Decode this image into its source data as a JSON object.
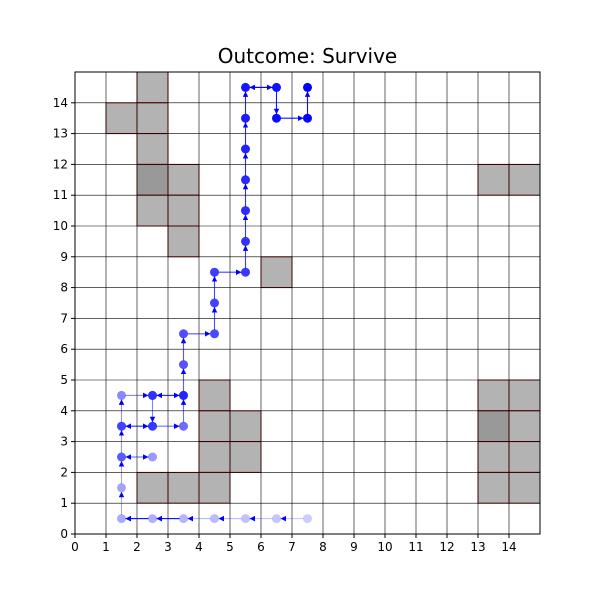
{
  "chart_data": {
    "type": "scatter",
    "title": "Outcome: Survive",
    "xlabel": "",
    "ylabel": "",
    "xlim": [
      0,
      15
    ],
    "ylim": [
      0,
      15
    ],
    "x_ticks": [
      0,
      1,
      2,
      3,
      4,
      5,
      6,
      7,
      8,
      9,
      10,
      11,
      12,
      13,
      14
    ],
    "y_ticks": [
      0,
      1,
      2,
      3,
      4,
      5,
      6,
      7,
      8,
      9,
      10,
      11,
      12,
      13,
      14
    ],
    "grid": true,
    "colors": {
      "obstacle": "#b3b3b3",
      "obstacle_dark": "#999999",
      "obstacle_edge": "#8b0000",
      "path": "#0000ff",
      "grid_line": "#000000"
    },
    "obstacle_cells": [
      [
        2,
        14
      ],
      [
        1,
        13
      ],
      [
        2,
        13
      ],
      [
        2,
        12
      ],
      [
        2,
        11
      ],
      [
        3,
        11
      ],
      [
        2,
        10
      ],
      [
        3,
        10
      ],
      [
        3,
        9
      ],
      [
        6,
        8
      ],
      [
        4,
        4
      ],
      [
        4,
        3
      ],
      [
        5,
        3
      ],
      [
        4,
        2
      ],
      [
        5,
        2
      ],
      [
        2,
        1
      ],
      [
        3,
        1
      ],
      [
        4,
        1
      ],
      [
        13,
        11
      ],
      [
        14,
        11
      ],
      [
        13,
        4
      ],
      [
        14,
        4
      ],
      [
        13,
        3
      ],
      [
        14,
        3
      ],
      [
        13,
        2
      ],
      [
        14,
        2
      ],
      [
        13,
        1
      ],
      [
        14,
        1
      ]
    ],
    "dark_obstacle_cells": [
      [
        2,
        11
      ],
      [
        13,
        3
      ]
    ],
    "path_points": [
      [
        7.5,
        0.5
      ],
      [
        6.5,
        0.5
      ],
      [
        5.5,
        0.5
      ],
      [
        4.5,
        0.5
      ],
      [
        3.5,
        0.5
      ],
      [
        2.5,
        0.5
      ],
      [
        1.5,
        0.5
      ],
      [
        1.5,
        1.5
      ],
      [
        1.5,
        2.5
      ],
      [
        2.5,
        2.5
      ],
      [
        1.5,
        2.5
      ],
      [
        1.5,
        3.5
      ],
      [
        1.5,
        4.5
      ],
      [
        2.5,
        4.5
      ],
      [
        2.5,
        3.5
      ],
      [
        1.5,
        3.5
      ],
      [
        2.5,
        3.5
      ],
      [
        3.5,
        3.5
      ],
      [
        3.5,
        4.5
      ],
      [
        2.5,
        4.5
      ],
      [
        3.5,
        4.5
      ],
      [
        3.5,
        5.5
      ],
      [
        3.5,
        6.5
      ],
      [
        4.5,
        6.5
      ],
      [
        4.5,
        7.5
      ],
      [
        4.5,
        8.5
      ],
      [
        5.5,
        8.5
      ],
      [
        5.5,
        9.5
      ],
      [
        5.5,
        10.5
      ],
      [
        5.5,
        11.5
      ],
      [
        5.5,
        12.5
      ],
      [
        5.5,
        13.5
      ],
      [
        5.5,
        14.5
      ],
      [
        6.5,
        14.5
      ],
      [
        6.5,
        13.5
      ],
      [
        7.5,
        13.5
      ],
      [
        7.5,
        14.5
      ]
    ],
    "extra_arrows": [
      [
        [
          2.5,
          0.5
        ],
        [
          1.5,
          0.5
        ]
      ],
      [
        [
          3.5,
          0.5
        ],
        [
          2.5,
          0.5
        ]
      ],
      [
        [
          6.5,
          14.5
        ],
        [
          5.5,
          14.5
        ]
      ]
    ]
  }
}
